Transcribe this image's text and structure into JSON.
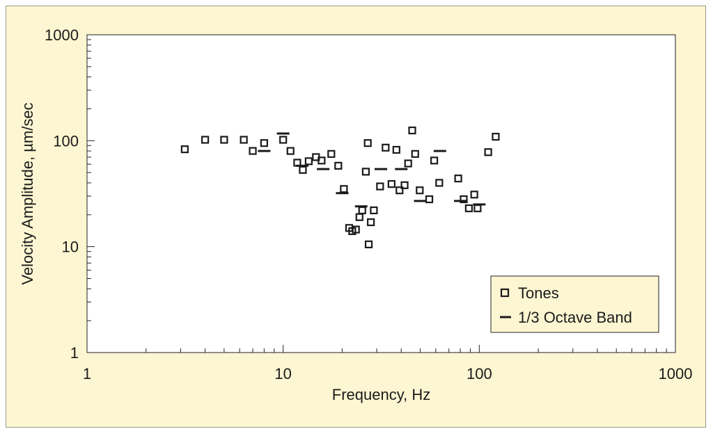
{
  "chart_data": {
    "type": "scatter",
    "title": "",
    "xlabel": "Frequency, Hz",
    "ylabel": "Velocity Amplitude, µm/sec",
    "x_scale": "log",
    "y_scale": "log",
    "xlim": [
      1,
      1000
    ],
    "ylim": [
      1,
      1000
    ],
    "x_ticks": [
      "1",
      "10",
      "100",
      "1000"
    ],
    "y_ticks": [
      "1",
      "10",
      "100",
      "1000"
    ],
    "grid": false,
    "legend_position": "bottom-right",
    "series": [
      {
        "name": "Tones",
        "marker": "open-square",
        "x": [
          3.15,
          4,
          5,
          6.3,
          7,
          8,
          10,
          10.9,
          11.8,
          12.6,
          13.5,
          14.7,
          15.7,
          17.6,
          19.1,
          20.4,
          21.7,
          22.5,
          23.5,
          24.5,
          25.3,
          26.4,
          27,
          27.3,
          28,
          29,
          31.2,
          33.3,
          35.7,
          37.8,
          39.2,
          41.6,
          43.4,
          45.5,
          47.1,
          49.7,
          55.6,
          58.9,
          62.5,
          78.1,
          83.3,
          88.5,
          94.3,
          98,
          111,
          121.3
        ],
        "y": [
          83,
          102,
          102,
          102,
          80,
          95,
          102,
          80,
          62,
          53,
          64,
          70,
          65,
          75,
          58,
          35,
          15,
          14,
          14.5,
          19,
          22,
          51,
          95,
          10.5,
          17,
          22,
          37,
          86,
          39,
          82,
          34,
          38,
          61,
          125,
          75,
          34,
          28,
          65,
          40,
          44,
          28,
          23,
          31,
          23,
          78,
          109
        ]
      },
      {
        "name": "1/3 Octave Band",
        "marker": "dash",
        "x": [
          8,
          10,
          12.5,
          16,
          20,
          25,
          31.5,
          40,
          50,
          63,
          80,
          100
        ],
        "y": [
          80,
          117,
          58,
          54,
          32,
          24,
          54,
          54,
          27,
          80,
          27,
          25
        ]
      }
    ]
  },
  "colors": {
    "background": "#fdf6d2",
    "plot_area": "#ffffff",
    "marks": "#1a1a1a",
    "legend_fill": "#fdf6d2"
  }
}
